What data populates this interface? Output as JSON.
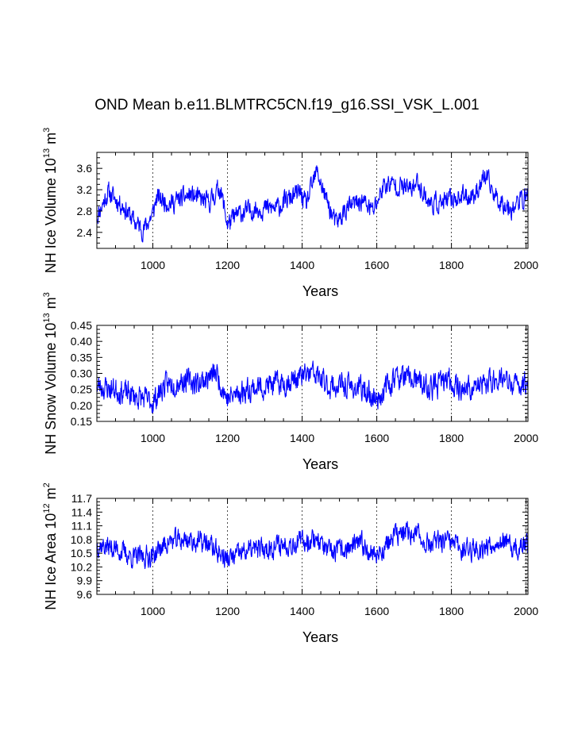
{
  "title": "OND Mean b.e11.BLMTRC5CN.f19_g16.SSI_VSK_L.001",
  "colors": {
    "line": "#0000ff",
    "axis": "#000000",
    "grid": "#000000"
  },
  "chart_data": [
    {
      "type": "line",
      "ylabel_main": "NH Ice Volume 10",
      "ylabel_exp": "13",
      "ylabel_unit": "m",
      "ylabel_unit_exp": "3",
      "xlabel": "Years",
      "xlim": [
        850,
        2005
      ],
      "ylim": [
        2.1,
        3.9
      ],
      "xticks": [
        1000,
        1200,
        1400,
        1600,
        1800,
        2000
      ],
      "xtick_labels": [
        "1000",
        "1200",
        "1400",
        "1600",
        "1800",
        "2000"
      ],
      "yticks": [
        2.4,
        2.8,
        3.2,
        3.6
      ],
      "ytick_labels": [
        "2.4",
        "2.8",
        "3.2",
        "3.6"
      ],
      "grid": "vertical dashed at x ticks",
      "series": [
        {
          "name": "NH Ice Volume",
          "keyframes": [
            [
              850,
              2.7
            ],
            [
              880,
              3.15
            ],
            [
              920,
              2.9
            ],
            [
              950,
              2.6
            ],
            [
              975,
              2.45
            ],
            [
              1000,
              2.75
            ],
            [
              1010,
              3.05
            ],
            [
              1050,
              2.95
            ],
            [
              1100,
              3.1
            ],
            [
              1150,
              2.95
            ],
            [
              1180,
              3.25
            ],
            [
              1200,
              2.55
            ],
            [
              1230,
              2.75
            ],
            [
              1280,
              2.85
            ],
            [
              1330,
              2.85
            ],
            [
              1370,
              3.05
            ],
            [
              1395,
              3.15
            ],
            [
              1410,
              2.9
            ],
            [
              1440,
              3.55
            ],
            [
              1460,
              3.1
            ],
            [
              1490,
              2.55
            ],
            [
              1520,
              2.85
            ],
            [
              1560,
              3.0
            ],
            [
              1590,
              2.8
            ],
            [
              1620,
              3.3
            ],
            [
              1650,
              3.3
            ],
            [
              1690,
              3.2
            ],
            [
              1710,
              3.35
            ],
            [
              1740,
              2.95
            ],
            [
              1780,
              2.95
            ],
            [
              1810,
              3.05
            ],
            [
              1860,
              3.1
            ],
            [
              1890,
              3.45
            ],
            [
              1920,
              3.05
            ],
            [
              1960,
              2.85
            ],
            [
              2005,
              3.1
            ]
          ]
        }
      ]
    },
    {
      "type": "line",
      "ylabel_main": "NH Snow Volume 10",
      "ylabel_exp": "13",
      "ylabel_unit": "m",
      "ylabel_unit_exp": "3",
      "xlabel": "Years",
      "xlim": [
        850,
        2005
      ],
      "ylim": [
        0.15,
        0.45
      ],
      "xticks": [
        1000,
        1200,
        1400,
        1600,
        1800,
        2000
      ],
      "xtick_labels": [
        "1000",
        "1200",
        "1400",
        "1600",
        "1800",
        "2000"
      ],
      "yticks": [
        0.15,
        0.2,
        0.25,
        0.3,
        0.35,
        0.4,
        0.45
      ],
      "ytick_labels": [
        "0.15",
        "0.20",
        "0.25",
        "0.30",
        "0.35",
        "0.40",
        "0.45"
      ],
      "grid": "vertical dashed at x ticks",
      "series": [
        {
          "name": "NH Snow Volume",
          "keyframes": [
            [
              850,
              0.26
            ],
            [
              900,
              0.25
            ],
            [
              950,
              0.23
            ],
            [
              1000,
              0.21
            ],
            [
              1030,
              0.26
            ],
            [
              1080,
              0.28
            ],
            [
              1120,
              0.27
            ],
            [
              1170,
              0.3
            ],
            [
              1200,
              0.22
            ],
            [
              1250,
              0.25
            ],
            [
              1300,
              0.26
            ],
            [
              1350,
              0.27
            ],
            [
              1400,
              0.29
            ],
            [
              1430,
              0.3
            ],
            [
              1470,
              0.26
            ],
            [
              1520,
              0.26
            ],
            [
              1560,
              0.25
            ],
            [
              1600,
              0.22
            ],
            [
              1650,
              0.29
            ],
            [
              1700,
              0.28
            ],
            [
              1740,
              0.25
            ],
            [
              1790,
              0.28
            ],
            [
              1830,
              0.25
            ],
            [
              1880,
              0.26
            ],
            [
              1930,
              0.29
            ],
            [
              1960,
              0.26
            ],
            [
              2005,
              0.27
            ]
          ]
        }
      ]
    },
    {
      "type": "line",
      "ylabel_main": "NH Ice Area 10",
      "ylabel_exp": "12",
      "ylabel_unit": "m",
      "ylabel_unit_exp": "2",
      "xlabel": "Years",
      "xlim": [
        850,
        2005
      ],
      "ylim": [
        9.6,
        11.7
      ],
      "xticks": [
        1000,
        1200,
        1400,
        1600,
        1800,
        2000
      ],
      "xtick_labels": [
        "1000",
        "1200",
        "1400",
        "1600",
        "1800",
        "2000"
      ],
      "yticks": [
        9.6,
        9.9,
        10.2,
        10.5,
        10.8,
        11.1,
        11.4,
        11.7
      ],
      "ytick_labels": [
        "9.6",
        "9.9",
        "10.2",
        "10.5",
        "10.8",
        "11.1",
        "11.4",
        "11.7"
      ],
      "grid": "vertical dashed at x ticks",
      "series": [
        {
          "name": "NH Ice Area",
          "keyframes": [
            [
              850,
              10.7
            ],
            [
              900,
              10.6
            ],
            [
              950,
              10.4
            ],
            [
              1000,
              10.45
            ],
            [
              1040,
              10.75
            ],
            [
              1090,
              10.8
            ],
            [
              1150,
              10.7
            ],
            [
              1200,
              10.35
            ],
            [
              1250,
              10.55
            ],
            [
              1300,
              10.6
            ],
            [
              1350,
              10.7
            ],
            [
              1400,
              10.75
            ],
            [
              1440,
              10.85
            ],
            [
              1470,
              10.5
            ],
            [
              1520,
              10.6
            ],
            [
              1560,
              10.7
            ],
            [
              1600,
              10.45
            ],
            [
              1650,
              10.9
            ],
            [
              1700,
              10.95
            ],
            [
              1740,
              10.7
            ],
            [
              1790,
              10.75
            ],
            [
              1830,
              10.6
            ],
            [
              1880,
              10.6
            ],
            [
              1930,
              10.8
            ],
            [
              1970,
              10.55
            ],
            [
              2005,
              10.7
            ]
          ]
        }
      ]
    }
  ]
}
